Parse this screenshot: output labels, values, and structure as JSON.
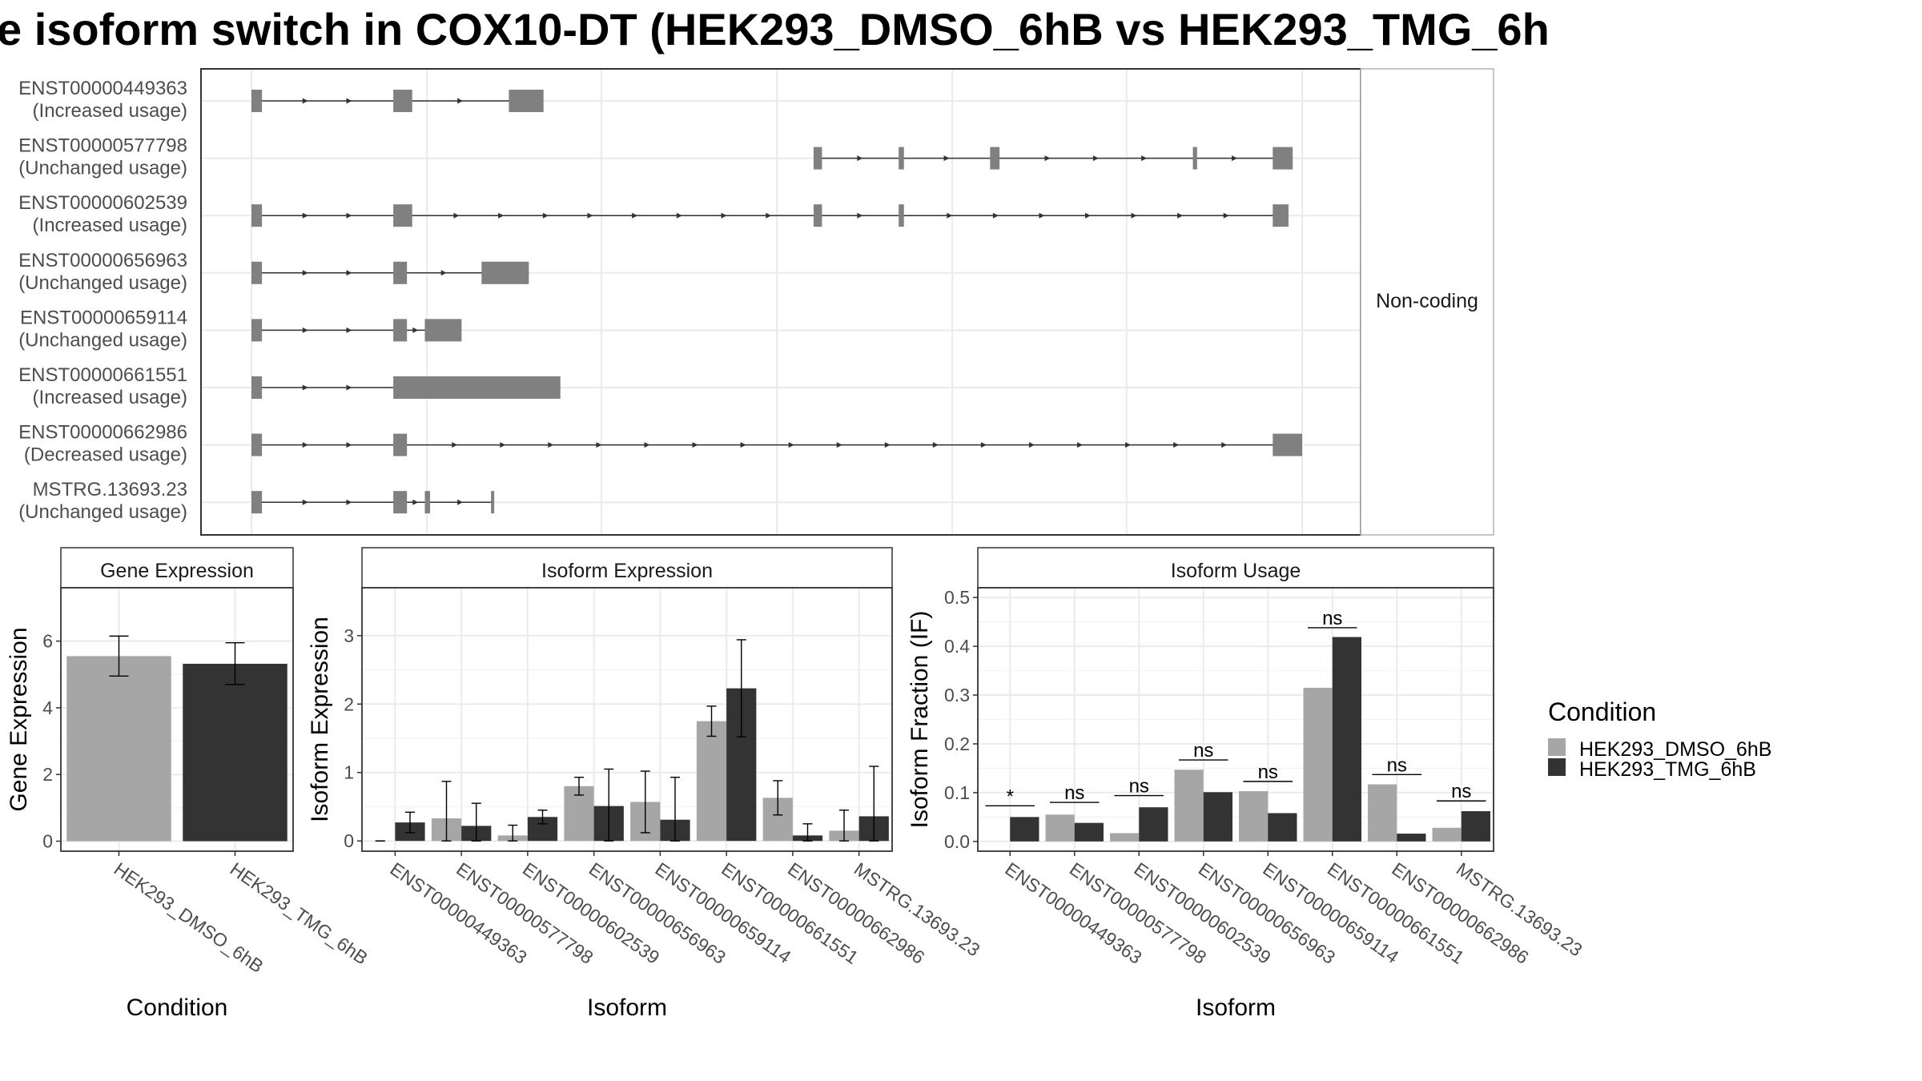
{
  "title": "e isoform switch in COX10-DT (HEK293_DMSO_6hB vs HEK293_TMG_6h",
  "colors": {
    "dmso": "#a6a6a6",
    "tmg": "#333333",
    "exon": "#808080",
    "grid": "#ebebeb",
    "panel_border": "#333333",
    "strip_border": "#b3b3b3",
    "strip_bg": "#ffffff"
  },
  "chart_data": [
    {
      "type": "gene-structure",
      "strip_label": "Non-coding",
      "x_range": [
        0,
        100
      ],
      "isoforms": [
        {
          "id": "ENST00000449363",
          "usage": "(Increased usage)",
          "exons": [
            [
              0,
              1
            ],
            [
              13.5,
              15.3
            ],
            [
              24.5,
              27.8
            ]
          ]
        },
        {
          "id": "ENST00000577798",
          "usage": "(Unchanged usage)",
          "exons": [
            [
              53.5,
              54.3
            ],
            [
              61.6,
              62.1
            ],
            [
              70.3,
              71.2
            ],
            [
              89.6,
              90
            ],
            [
              97.2,
              99.1
            ]
          ]
        },
        {
          "id": "ENST00000602539",
          "usage": "(Increased usage)",
          "exons": [
            [
              0,
              1
            ],
            [
              13.5,
              15.3
            ],
            [
              53.5,
              54.3
            ],
            [
              61.6,
              62.1
            ],
            [
              97.2,
              98.7
            ]
          ]
        },
        {
          "id": "ENST00000656963",
          "usage": "(Unchanged usage)",
          "exons": [
            [
              0,
              1
            ],
            [
              13.5,
              14.8
            ],
            [
              21.9,
              26.4
            ]
          ]
        },
        {
          "id": "ENST00000659114",
          "usage": "(Unchanged usage)",
          "exons": [
            [
              0,
              1
            ],
            [
              13.5,
              14.8
            ],
            [
              16.5,
              20
            ]
          ]
        },
        {
          "id": "ENST00000661551",
          "usage": "(Increased usage)",
          "exons": [
            [
              0,
              1
            ],
            [
              13.5,
              29.4
            ]
          ]
        },
        {
          "id": "ENST00000662986",
          "usage": "(Decreased usage)",
          "exons": [
            [
              0,
              1
            ],
            [
              13.5,
              14.8
            ],
            [
              97.2,
              100
            ]
          ]
        },
        {
          "id": "MSTRG.13693.23",
          "usage": "(Unchanged usage)",
          "exons": [
            [
              0,
              1
            ],
            [
              13.5,
              14.8
            ],
            [
              16.5,
              17
            ],
            [
              22.8,
              23.1
            ]
          ]
        }
      ]
    },
    {
      "type": "bar",
      "strip_label": "Gene Expression",
      "xlabel": "Condition",
      "ylabel": "Gene Expression",
      "ylim": [
        -0.3,
        7.6
      ],
      "yticks": [
        0,
        2,
        4,
        6
      ],
      "categories": [
        "HEK293_DMSO_6hB",
        "HEK293_TMG_6hB"
      ],
      "values": [
        5.55,
        5.32
      ],
      "errors": [
        [
          4.95,
          6.15
        ],
        [
          4.7,
          5.95
        ]
      ]
    },
    {
      "type": "bar",
      "strip_label": "Isoform Expression",
      "xlabel": "Isoform",
      "ylabel": "Isoform Expression",
      "ylim": [
        -0.15,
        3.7
      ],
      "yticks": [
        0,
        1,
        2,
        3
      ],
      "categories": [
        "ENST00000449363",
        "ENST00000577798",
        "ENST00000602539",
        "ENST00000656963",
        "ENST00000659114",
        "ENST00000661551",
        "ENST00000662986",
        "MSTRG.13693.23"
      ],
      "series": [
        {
          "name": "HEK293_DMSO_6hB",
          "values": [
            0,
            0.33,
            0.08,
            0.8,
            0.57,
            1.75,
            0.63,
            0.15
          ],
          "errors": [
            [
              0,
              0
            ],
            [
              0,
              0.87
            ],
            [
              0,
              0.23
            ],
            [
              0.67,
              0.93
            ],
            [
              0.12,
              1.02
            ],
            [
              1.53,
              1.97
            ],
            [
              0.38,
              0.88
            ],
            [
              0,
              0.45
            ]
          ]
        },
        {
          "name": "HEK293_TMG_6hB",
          "values": [
            0.27,
            0.22,
            0.35,
            0.51,
            0.31,
            2.23,
            0.08,
            0.36
          ],
          "errors": [
            [
              0.12,
              0.42
            ],
            [
              0,
              0.55
            ],
            [
              0.25,
              0.45
            ],
            [
              0,
              1.05
            ],
            [
              0,
              0.93
            ],
            [
              1.52,
              2.94
            ],
            [
              0,
              0.25
            ],
            [
              0,
              1.09
            ]
          ]
        }
      ]
    },
    {
      "type": "bar",
      "strip_label": "Isoform Usage",
      "xlabel": "Isoform",
      "ylabel": "Isoform Fraction (IF)",
      "ylim": [
        -0.02,
        0.52
      ],
      "yticks": [
        0.0,
        0.1,
        0.2,
        0.3,
        0.4,
        0.5
      ],
      "ytick_labels": [
        "0.0",
        "0.1",
        "0.2",
        "0.3",
        "0.4",
        "0.5"
      ],
      "categories": [
        "ENST00000449363",
        "ENST00000577798",
        "ENST00000602539",
        "ENST00000656963",
        "ENST00000659114",
        "ENST00000661551",
        "ENST00000662986",
        "MSTRG.13693.23"
      ],
      "series": [
        {
          "name": "HEK293_DMSO_6hB",
          "values": [
            0,
            0.055,
            0.017,
            0.147,
            0.103,
            0.315,
            0.117,
            0.028
          ]
        },
        {
          "name": "HEK293_TMG_6hB",
          "values": [
            0.05,
            0.038,
            0.07,
            0.101,
            0.058,
            0.419,
            0.016,
            0.062
          ]
        }
      ],
      "significance": [
        "*",
        "ns",
        "ns",
        "ns",
        "ns",
        "ns",
        "ns",
        "ns"
      ],
      "significance_y": [
        0.073,
        0.08,
        0.094,
        0.167,
        0.123,
        0.438,
        0.137,
        0.083
      ]
    }
  ],
  "legend": {
    "title": "Condition",
    "items": [
      {
        "label": "HEK293_DMSO_6hB",
        "color": "#a6a6a6"
      },
      {
        "label": "HEK293_TMG_6hB",
        "color": "#333333"
      }
    ]
  }
}
